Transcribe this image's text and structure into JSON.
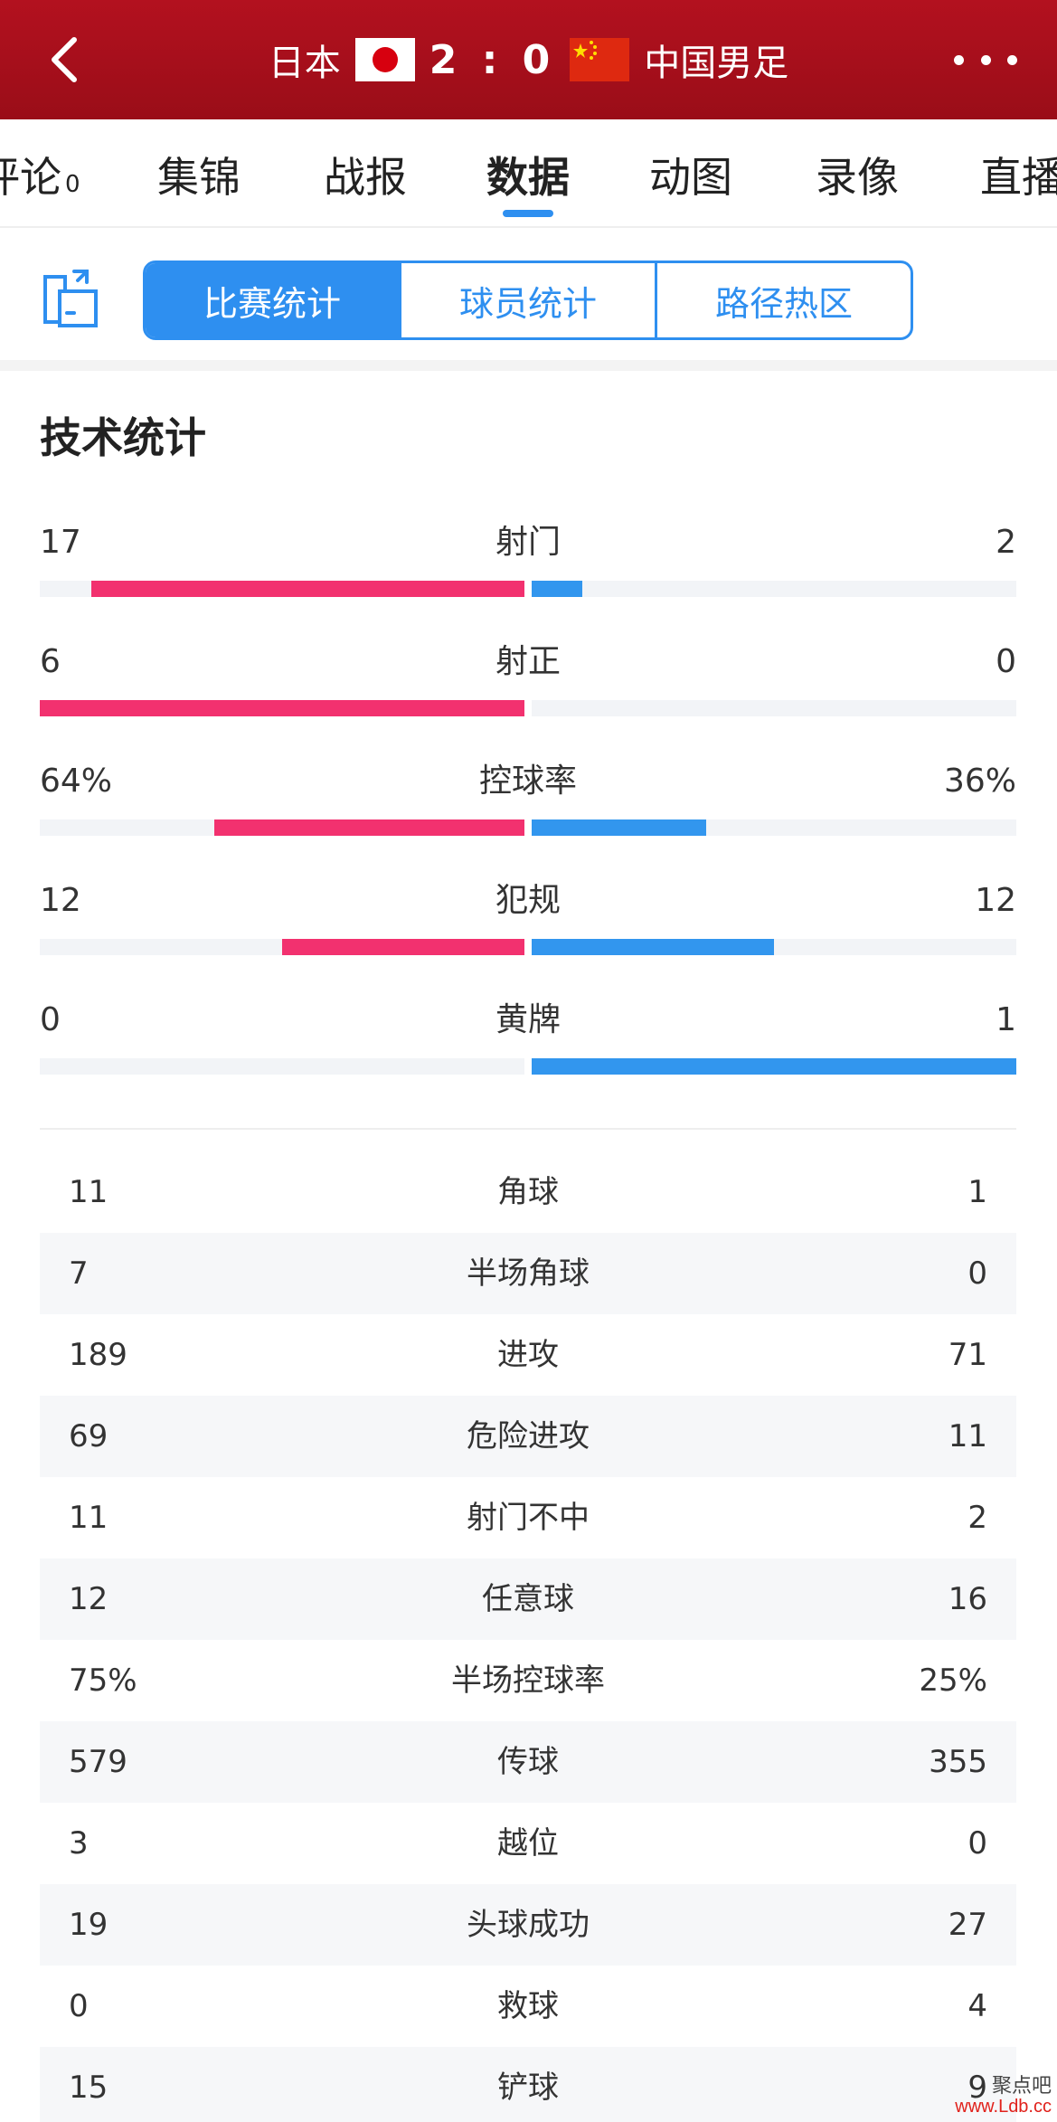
{
  "header": {
    "home_team": "日本",
    "score": "2 : 0",
    "away_team": "中国男足"
  },
  "tabs": [
    {
      "label": "评论",
      "count": "0"
    },
    {
      "label": "集锦"
    },
    {
      "label": "战报"
    },
    {
      "label": "数据"
    },
    {
      "label": "动图"
    },
    {
      "label": "录像"
    },
    {
      "label": "直播"
    }
  ],
  "active_tab": "数据",
  "segments": [
    "比赛统计",
    "球员统计",
    "路径热区"
  ],
  "active_segment": "比赛统计",
  "section_title": "技术统计",
  "colors": {
    "header": "#a50f1b",
    "home": "#f2316f",
    "away": "#3296ee",
    "accent": "#2e8ff0"
  },
  "bar_stats": [
    {
      "label": "射门",
      "left": "17",
      "right": "2",
      "left_frac": 0.894,
      "right_frac": 0.105
    },
    {
      "label": "射正",
      "left": "6",
      "right": "0",
      "left_frac": 1.0,
      "right_frac": 0.0
    },
    {
      "label": "控球率",
      "left": "64%",
      "right": "36%",
      "left_frac": 0.64,
      "right_frac": 0.36
    },
    {
      "label": "犯规",
      "left": "12",
      "right": "12",
      "left_frac": 0.5,
      "right_frac": 0.5
    },
    {
      "label": "黄牌",
      "left": "0",
      "right": "1",
      "left_frac": 0.0,
      "right_frac": 1.0
    }
  ],
  "table_stats": [
    {
      "label": "角球",
      "left": "11",
      "right": "1"
    },
    {
      "label": "半场角球",
      "left": "7",
      "right": "0"
    },
    {
      "label": "进攻",
      "left": "189",
      "right": "71"
    },
    {
      "label": "危险进攻",
      "left": "69",
      "right": "11"
    },
    {
      "label": "射门不中",
      "left": "11",
      "right": "2"
    },
    {
      "label": "任意球",
      "left": "12",
      "right": "16"
    },
    {
      "label": "半场控球率",
      "left": "75%",
      "right": "25%"
    },
    {
      "label": "传球",
      "left": "579",
      "right": "355"
    },
    {
      "label": "越位",
      "left": "3",
      "right": "0"
    },
    {
      "label": "头球成功",
      "left": "19",
      "right": "27"
    },
    {
      "label": "救球",
      "left": "0",
      "right": "4"
    },
    {
      "label": "铲球",
      "left": "15",
      "right": "9"
    }
  ],
  "watermark": {
    "name": "聚点吧",
    "url": "www.Ldb.cc"
  }
}
